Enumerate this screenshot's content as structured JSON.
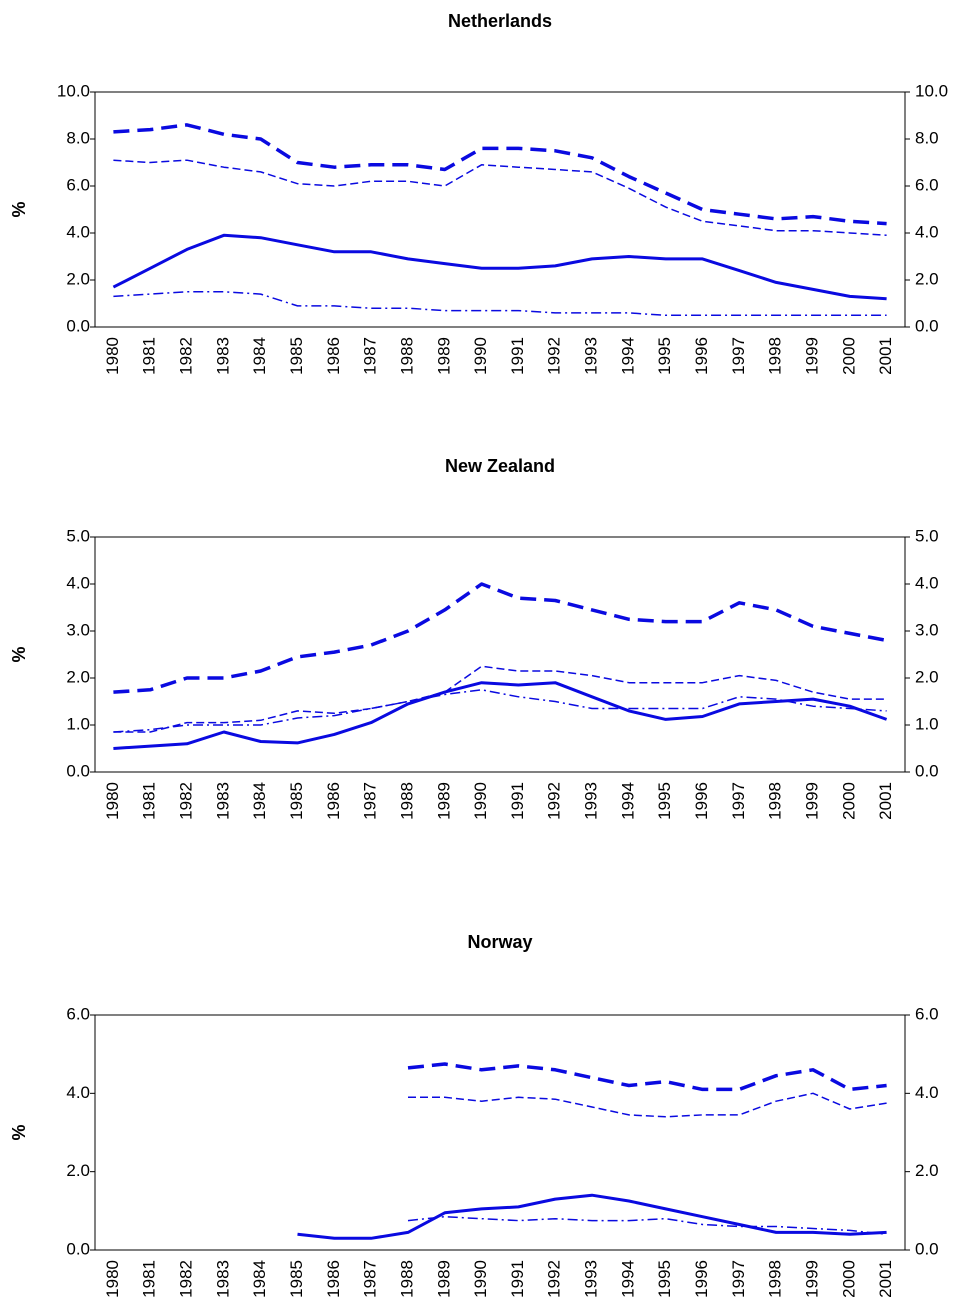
{
  "chart_data": [
    {
      "type": "line",
      "title": "Netherlands",
      "ylabel": "%",
      "categories": [
        "1980",
        "1981",
        "1982",
        "1983",
        "1984",
        "1985",
        "1986",
        "1987",
        "1988",
        "1989",
        "1990",
        "1991",
        "1992",
        "1993",
        "1994",
        "1995",
        "1996",
        "1997",
        "1998",
        "1999",
        "2000",
        "2001"
      ],
      "ylim": [
        0,
        10
      ],
      "yticks": [
        {
          "value": 0,
          "label": "0.0"
        },
        {
          "value": 2,
          "label": "2.0"
        },
        {
          "value": 4,
          "label": "4.0"
        },
        {
          "value": 6,
          "label": "6.0"
        },
        {
          "value": 8,
          "label": "8.0"
        },
        {
          "value": 10,
          "label": "10.0"
        }
      ],
      "y2lim": [
        0,
        10
      ],
      "y2ticks": [
        {
          "value": 0,
          "label": "0.0"
        },
        {
          "value": 2,
          "label": "2.0"
        },
        {
          "value": 4,
          "label": "4.0"
        },
        {
          "value": 6,
          "label": "6.0"
        },
        {
          "value": 8,
          "label": "8.0"
        },
        {
          "value": 10,
          "label": "10.0"
        }
      ],
      "series": [
        {
          "color": "#0a0ae0",
          "width": 3.5,
          "dash": "16,8",
          "values": [
            8.3,
            8.4,
            8.6,
            8.2,
            8.0,
            7.0,
            6.8,
            6.9,
            6.9,
            6.7,
            7.6,
            7.6,
            7.5,
            7.2,
            6.4,
            5.7,
            5.0,
            4.8,
            4.6,
            4.7,
            4.5,
            4.4
          ]
        },
        {
          "color": "#0a0ae0",
          "width": 1.5,
          "dash": "8,4",
          "values": [
            7.1,
            7.0,
            7.1,
            6.8,
            6.6,
            6.1,
            6.0,
            6.2,
            6.2,
            6.0,
            6.9,
            6.8,
            6.7,
            6.6,
            5.9,
            5.1,
            4.5,
            4.3,
            4.1,
            4.1,
            4.0,
            3.9
          ]
        },
        {
          "color": "#0a0ae0",
          "width": 3,
          "dash": "none",
          "values": [
            1.7,
            2.5,
            3.3,
            3.9,
            3.8,
            3.5,
            3.2,
            3.2,
            2.9,
            2.7,
            2.5,
            2.5,
            2.6,
            2.9,
            3.0,
            2.9,
            2.9,
            2.4,
            1.9,
            1.6,
            1.3,
            1.2
          ]
        },
        {
          "color": "#0a0ae0",
          "width": 1.5,
          "dash": "10,4,2,4",
          "values": [
            1.3,
            1.4,
            1.5,
            1.5,
            1.4,
            0.9,
            0.9,
            0.8,
            0.8,
            0.7,
            0.7,
            0.7,
            0.6,
            0.6,
            0.6,
            0.5,
            0.5,
            0.5,
            0.5,
            0.5,
            0.5,
            0.5
          ]
        }
      ]
    },
    {
      "type": "line",
      "title": "New Zealand",
      "ylabel": "%",
      "categories": [
        "1980",
        "1981",
        "1982",
        "1983",
        "1984",
        "1985",
        "1986",
        "1987",
        "1988",
        "1989",
        "1990",
        "1991",
        "1992",
        "1993",
        "1994",
        "1995",
        "1996",
        "1997",
        "1998",
        "1999",
        "2000",
        "2001"
      ],
      "ylim": [
        0,
        5
      ],
      "yticks": [
        {
          "value": 0,
          "label": "0.0"
        },
        {
          "value": 1,
          "label": "1.0"
        },
        {
          "value": 2,
          "label": "2.0"
        },
        {
          "value": 3,
          "label": "3.0"
        },
        {
          "value": 4,
          "label": "4.0"
        },
        {
          "value": 5,
          "label": "5.0"
        }
      ],
      "y2lim": [
        0,
        5
      ],
      "y2ticks": [
        {
          "value": 0,
          "label": "0.0"
        },
        {
          "value": 1,
          "label": "1.0"
        },
        {
          "value": 2,
          "label": "2.0"
        },
        {
          "value": 3,
          "label": "3.0"
        },
        {
          "value": 4,
          "label": "4.0"
        },
        {
          "value": 5,
          "label": "5.0"
        }
      ],
      "series": [
        {
          "color": "#0a0ae0",
          "width": 3.5,
          "dash": "16,8",
          "values": [
            1.7,
            1.75,
            2.0,
            2.0,
            2.15,
            2.45,
            2.55,
            2.7,
            3.0,
            3.45,
            4.0,
            3.7,
            3.65,
            3.45,
            3.25,
            3.2,
            3.2,
            3.6,
            3.45,
            3.1,
            2.95,
            2.8
          ]
        },
        {
          "color": "#0a0ae0",
          "width": 1.5,
          "dash": "8,4",
          "values": [
            0.85,
            0.85,
            1.05,
            1.05,
            1.1,
            1.3,
            1.25,
            1.35,
            1.5,
            1.7,
            2.25,
            2.15,
            2.15,
            2.05,
            1.9,
            1.9,
            1.9,
            2.05,
            1.95,
            1.7,
            1.55,
            1.55
          ]
        },
        {
          "color": "#0a0ae0",
          "width": 3,
          "dash": "none",
          "values": [
            0.5,
            0.55,
            0.6,
            0.85,
            0.65,
            0.62,
            0.8,
            1.05,
            1.45,
            1.7,
            1.9,
            1.85,
            1.9,
            1.6,
            1.3,
            1.12,
            1.18,
            1.45,
            1.5,
            1.55,
            1.4,
            1.12
          ]
        },
        {
          "color": "#0a0ae0",
          "width": 1.5,
          "dash": "10,4,2,4",
          "values": [
            0.85,
            0.9,
            1.0,
            1.0,
            1.0,
            1.15,
            1.2,
            1.35,
            1.5,
            1.65,
            1.75,
            1.6,
            1.5,
            1.35,
            1.35,
            1.35,
            1.35,
            1.6,
            1.55,
            1.4,
            1.35,
            1.3
          ]
        }
      ]
    },
    {
      "type": "line",
      "title": "Norway",
      "ylabel": "%",
      "categories": [
        "1980",
        "1981",
        "1982",
        "1983",
        "1984",
        "1985",
        "1986",
        "1987",
        "1988",
        "1989",
        "1990",
        "1991",
        "1992",
        "1993",
        "1994",
        "1995",
        "1996",
        "1997",
        "1998",
        "1999",
        "2000",
        "2001"
      ],
      "ylim": [
        0,
        6
      ],
      "yticks": [
        {
          "value": 0,
          "label": "0.0"
        },
        {
          "value": 2,
          "label": "2.0"
        },
        {
          "value": 4,
          "label": "4.0"
        },
        {
          "value": 6,
          "label": "6.0"
        }
      ],
      "y2lim": [
        0,
        6
      ],
      "y2ticks": [
        {
          "value": 0,
          "label": "0.0"
        },
        {
          "value": 2,
          "label": "2.0"
        },
        {
          "value": 4,
          "label": "4.0"
        },
        {
          "value": 6,
          "label": "6.0"
        }
      ],
      "series": [
        {
          "color": "#0a0ae0",
          "width": 3.5,
          "dash": "16,8",
          "values": [
            null,
            null,
            null,
            null,
            null,
            null,
            null,
            null,
            4.65,
            4.75,
            4.6,
            4.7,
            4.6,
            4.4,
            4.2,
            4.3,
            4.1,
            4.1,
            4.45,
            4.6,
            4.1,
            4.2
          ]
        },
        {
          "color": "#0a0ae0",
          "width": 1.5,
          "dash": "8,4",
          "values": [
            null,
            null,
            null,
            null,
            null,
            null,
            null,
            null,
            3.9,
            3.9,
            3.8,
            3.9,
            3.85,
            3.65,
            3.45,
            3.4,
            3.45,
            3.45,
            3.8,
            4.0,
            3.6,
            3.75
          ]
        },
        {
          "color": "#0a0ae0",
          "width": 3,
          "dash": "none",
          "values": [
            null,
            null,
            null,
            null,
            null,
            0.4,
            0.3,
            0.3,
            0.45,
            0.95,
            1.05,
            1.1,
            1.3,
            1.4,
            1.25,
            1.05,
            0.85,
            0.65,
            0.45,
            0.45,
            0.4,
            0.45
          ]
        },
        {
          "color": "#0a0ae0",
          "width": 1.5,
          "dash": "10,4,2,4",
          "values": [
            null,
            null,
            null,
            null,
            null,
            null,
            null,
            null,
            0.75,
            0.85,
            0.8,
            0.75,
            0.8,
            0.75,
            0.75,
            0.8,
            0.65,
            0.6,
            0.6,
            0.55,
            0.5,
            0.4
          ]
        }
      ]
    }
  ]
}
